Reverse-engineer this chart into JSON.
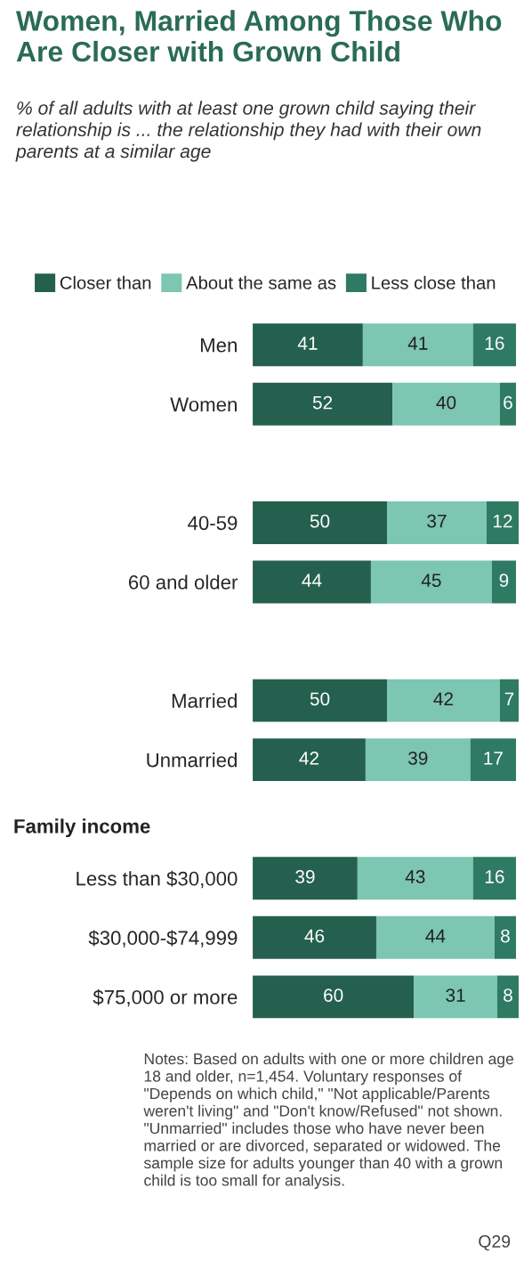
{
  "chart_data": {
    "type": "bar",
    "orientation": "horizontal",
    "stacked": true,
    "data_labels": true,
    "legend": "top",
    "grid": false,
    "title": "Women, Married Among Those Who Are Closer with Grown Child",
    "subtitle": "% of all adults with at least one grown child saying their relationship is ... the relationship they had with their own parents at a similar age",
    "categories": [
      "Men",
      "Women",
      null,
      "40-59",
      "60 and older",
      null,
      "Married",
      "Unmarried",
      null,
      "Less than $30,000",
      "$30,000-$74,999",
      "$75,000 or more"
    ],
    "series": [
      {
        "name": "Closer than",
        "color": "#25604e",
        "values": [
          41,
          52,
          null,
          50,
          44,
          null,
          50,
          42,
          null,
          39,
          46,
          60
        ]
      },
      {
        "name": "About the same as",
        "color": "#7cc6b2",
        "values": [
          41,
          40,
          null,
          37,
          45,
          null,
          42,
          39,
          null,
          43,
          44,
          31
        ]
      },
      {
        "name": "Less close than",
        "color": "#2f7a63",
        "values": [
          16,
          6,
          null,
          12,
          9,
          null,
          7,
          17,
          null,
          16,
          8,
          8
        ]
      }
    ],
    "annotations": [
      "Family income",
      "Notes: Based on adults with one or more children age 18 and older, n=1,454. Voluntary responses of \"Depends on which child,\" \"Not applicable/Parents weren't living\" and \"Don't know/Refused\" not shown. \"Unmarried\" includes those who have never been married or are divorced, separated or widowed. The sample size for adults younger than 40 with a grown child is too small for analysis.",
      "Q29"
    ]
  }
}
